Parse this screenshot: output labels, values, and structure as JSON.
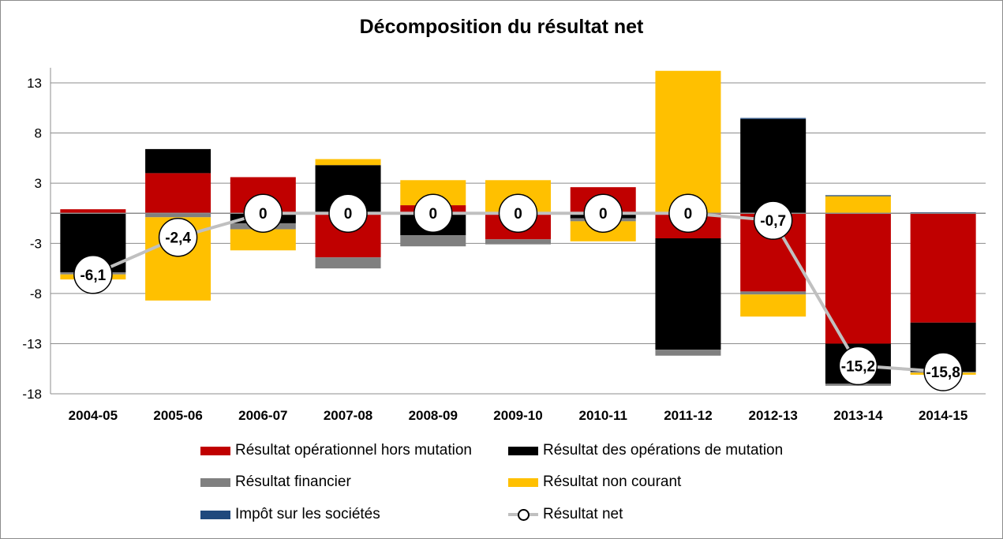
{
  "chart_data": {
    "type": "bar",
    "title": "Décomposition du résultat net",
    "categories": [
      "2004-05",
      "2005-06",
      "2006-07",
      "2007-08",
      "2008-09",
      "2009-10",
      "2010-11",
      "2011-12",
      "2012-13",
      "2013-14",
      "2014-15"
    ],
    "yticks": [
      13,
      8,
      3,
      -3,
      -8,
      -13,
      -18
    ],
    "ylim": [
      -18,
      14.5
    ],
    "grid": true,
    "legend_position": "bottom",
    "series": [
      {
        "name": "Résultat opérationnel hors mutation",
        "color": "#c00000",
        "values": [
          0.4,
          4.0,
          3.6,
          -4.4,
          0.8,
          -2.6,
          2.6,
          -2.5,
          -7.8,
          -13.0,
          -10.9
        ]
      },
      {
        "name": "Résultat des opérations de mutation",
        "color": "#000000",
        "values": [
          -5.9,
          2.4,
          -1.0,
          4.8,
          -2.2,
          0.1,
          -0.5,
          -11.1,
          9.4,
          -4.0,
          -4.9
        ]
      },
      {
        "name": "Résultat financier",
        "color": "#808080",
        "values": [
          -0.2,
          -0.4,
          -0.6,
          -1.1,
          -1.1,
          -0.5,
          -0.3,
          -0.6,
          -0.3,
          -0.2,
          -0.1
        ]
      },
      {
        "name": "Résultat non courant",
        "color": "#ffc000",
        "values": [
          -0.5,
          -8.3,
          -2.1,
          0.6,
          2.5,
          3.2,
          -2.0,
          14.2,
          -2.2,
          1.7,
          -0.2
        ]
      },
      {
        "name": "Impôt sur les sociétés",
        "color": "#1f497d",
        "values": [
          0,
          0,
          0,
          0,
          0,
          0,
          0,
          0,
          0.1,
          0.1,
          0.1
        ]
      }
    ],
    "line": {
      "name": "Résultat net",
      "color": "#c0c0c0",
      "values": [
        -6.1,
        -2.4,
        0,
        0,
        0,
        0,
        0,
        0,
        -0.7,
        -15.2,
        -15.8
      ],
      "labels": [
        "-6,1",
        "-2,4",
        "0",
        "0",
        "0",
        "0",
        "0",
        "0",
        "-0,7",
        "-15,2",
        "-15,8"
      ]
    }
  }
}
